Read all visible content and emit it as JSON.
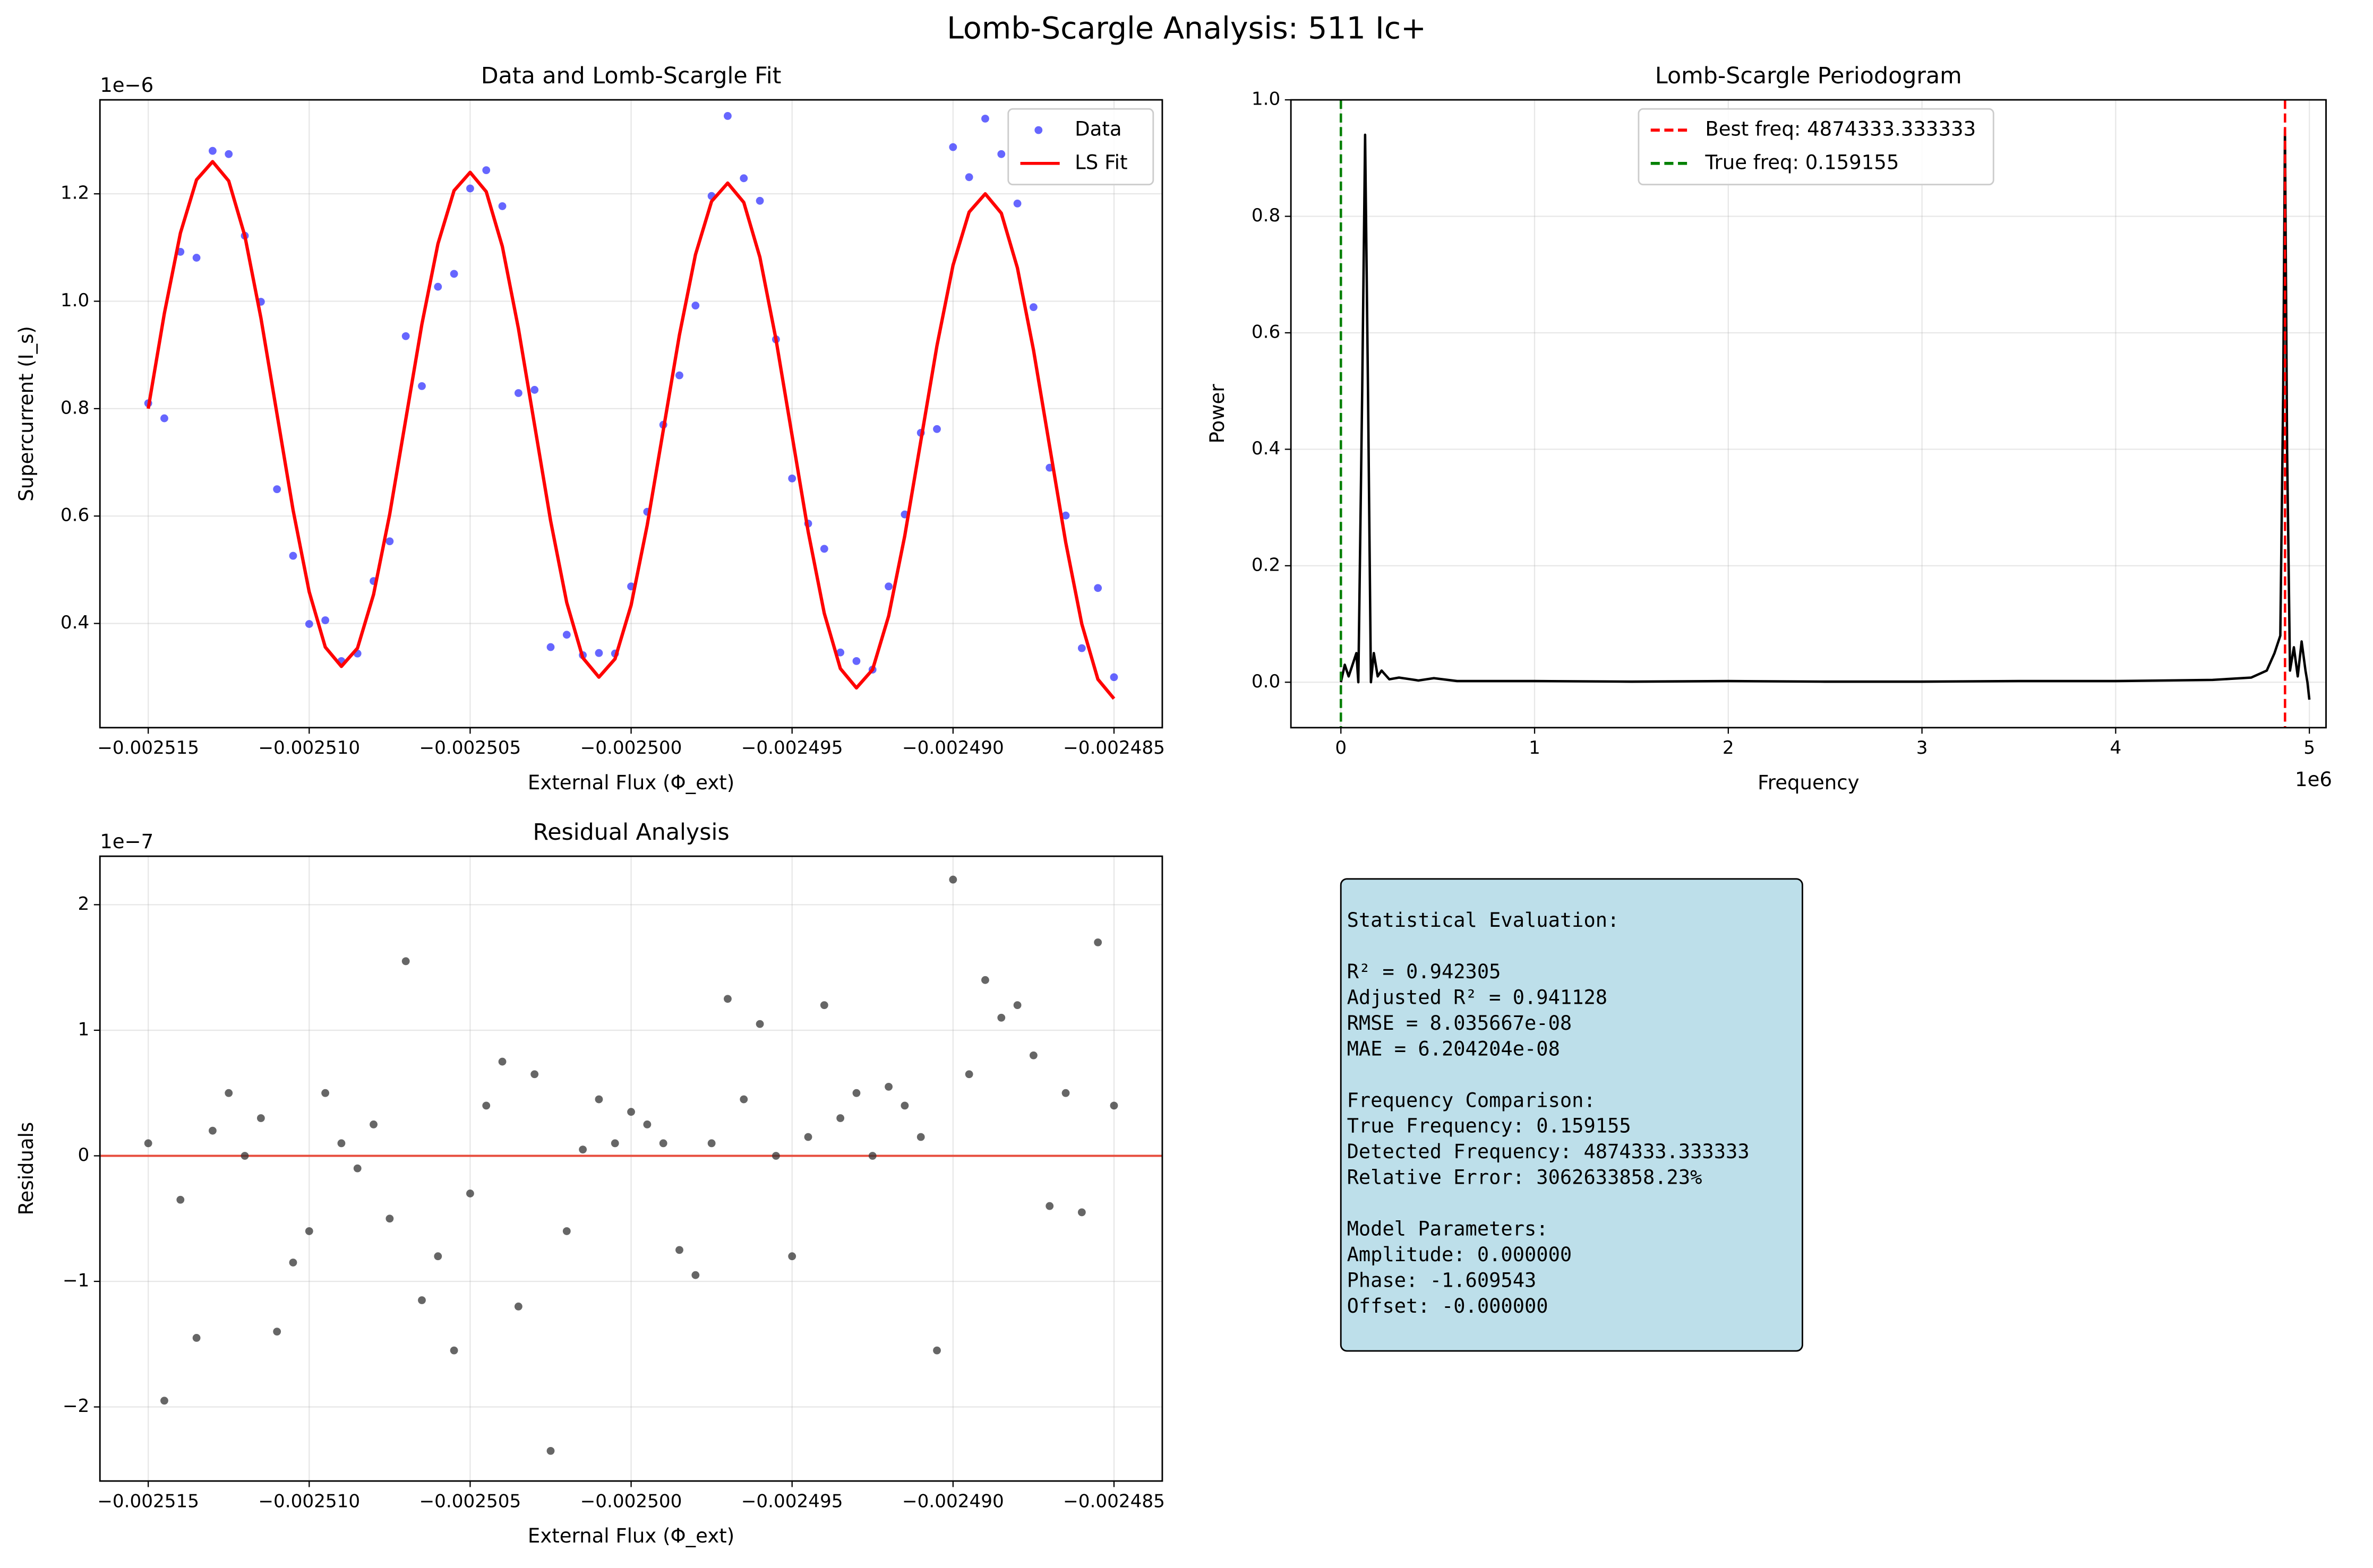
{
  "title": "Lomb-Scargle Analysis: 511 Ic+",
  "chart_data": [
    {
      "type": "scatter",
      "title": "Data and Lomb-Scargle Fit",
      "xlabel": "External Flux (Φ_ext)",
      "ylabel": "Supercurrent (I_s)",
      "y_offset": "1e−6",
      "grid": true,
      "legend": "upper right",
      "xlim": [
        -0.0025165,
        -0.0024835
      ],
      "ylim": [
        0.206,
        1.375
      ],
      "xticks": [
        {
          "value": -0.002515,
          "label": "−0.002515"
        },
        {
          "value": -0.00251,
          "label": "−0.002510"
        },
        {
          "value": -0.002505,
          "label": "−0.002505"
        },
        {
          "value": -0.0025,
          "label": "−0.002500"
        },
        {
          "value": -0.002495,
          "label": "−0.002495"
        },
        {
          "value": -0.00249,
          "label": "−0.002490"
        },
        {
          "value": -0.002485,
          "label": "−0.002485"
        }
      ],
      "yticks": [
        0.4,
        0.6,
        0.8,
        {
          "value": 1,
          "label": "1.0"
        },
        1.2
      ],
      "x": [
        -0.002515,
        -0.0025145,
        -0.002514,
        -0.0025135,
        -0.002513,
        -0.0025125,
        -0.002512,
        -0.0025115,
        -0.002511,
        -0.0025105,
        -0.00251,
        -0.0025095,
        -0.002509,
        -0.0025085,
        -0.002508,
        -0.0025075,
        -0.002507,
        -0.0025065,
        -0.002506,
        -0.0025055,
        -0.002505,
        -0.0025045,
        -0.002504,
        -0.0025035,
        -0.002503,
        -0.0025025,
        -0.002502,
        -0.0025015,
        -0.002501,
        -0.0025005,
        -0.0025,
        -0.0024995,
        -0.002499,
        -0.0024985,
        -0.002498,
        -0.0024975,
        -0.002497,
        -0.0024965,
        -0.002496,
        -0.0024955,
        -0.002495,
        -0.0024945,
        -0.002494,
        -0.0024935,
        -0.002493,
        -0.0024925,
        -0.002492,
        -0.0024915,
        -0.002491,
        -0.0024905,
        -0.00249,
        -0.0024895,
        -0.002489,
        -0.0024885,
        -0.002488,
        -0.0024875,
        -0.002487,
        -0.0024865,
        -0.002486,
        -0.0024855,
        -0.002485
      ],
      "series": [
        {
          "name": "Data",
          "color": "#3333ff",
          "mode": "markers",
          "values": [
            0.81,
            0.782,
            1.092,
            1.081,
            1.28,
            1.274,
            1.122,
            0.999,
            0.65,
            0.526,
            0.399,
            0.406,
            0.33,
            0.344,
            0.479,
            0.553,
            0.935,
            0.842,
            1.027,
            1.051,
            1.21,
            1.244,
            1.177,
            0.829,
            0.835,
            0.356,
            0.379,
            0.341,
            0.345,
            0.344,
            0.469,
            0.608,
            0.77,
            0.862,
            0.992,
            1.196,
            1.345,
            1.229,
            1.187,
            0.929,
            0.67,
            0.586,
            0.539,
            0.346,
            0.33,
            0.314,
            0.469,
            0.603,
            0.755,
            0.762,
            1.287,
            1.231,
            1.34,
            1.274,
            1.182,
            0.989,
            0.69,
            0.601,
            0.354,
            0.466,
            0.3
          ]
        },
        {
          "name": "LS Fit",
          "color": "#ff0000",
          "mode": "line",
          "values": [
            0.8,
            0.977,
            1.127,
            1.226,
            1.26,
            1.224,
            1.122,
            0.969,
            0.79,
            0.611,
            0.459,
            0.356,
            0.32,
            0.354,
            0.454,
            0.603,
            0.78,
            0.957,
            1.107,
            1.206,
            1.24,
            1.204,
            1.102,
            0.949,
            0.77,
            0.591,
            0.439,
            0.336,
            0.3,
            0.334,
            0.434,
            0.583,
            0.76,
            0.937,
            1.087,
            1.186,
            1.22,
            1.184,
            1.082,
            0.929,
            0.75,
            0.571,
            0.419,
            0.316,
            0.28,
            0.314,
            0.414,
            0.563,
            0.74,
            0.917,
            1.067,
            1.166,
            1.2,
            1.164,
            1.062,
            0.909,
            0.73,
            0.551,
            0.399,
            0.296,
            0.26
          ]
        }
      ]
    },
    {
      "type": "line",
      "title": "Lomb-Scargle Periodogram",
      "xlabel": "Frequency",
      "ylabel": "Power",
      "x_offset": "1e6",
      "grid": true,
      "legend": "upper center",
      "xlim": [
        -0.258,
        5.086
      ],
      "ylim": [
        -0.078,
        1.0
      ],
      "xticks": [
        0,
        1,
        2,
        3,
        4,
        5
      ],
      "yticks": [
        {
          "value": 0,
          "label": "0.0"
        },
        0.2,
        0.4,
        0.6,
        0.8,
        {
          "value": 1,
          "label": "1.0"
        }
      ],
      "x": [
        0,
        0.02,
        0.04,
        0.06,
        0.08,
        0.09,
        0.11,
        0.125,
        0.14,
        0.155,
        0.17,
        0.19,
        0.21,
        0.25,
        0.3,
        0.4,
        0.48,
        0.6,
        1.0,
        1.5,
        2.0,
        2.5,
        3.0,
        3.5,
        4.0,
        4.5,
        4.7,
        4.78,
        4.82,
        4.85,
        4.865,
        4.874,
        4.885,
        4.9,
        4.92,
        4.94,
        4.96,
        4.98,
        4.99,
        5.0
      ],
      "series": [
        {
          "color": "#000000",
          "mode": "line",
          "values": [
            0,
            0.03,
            0.01,
            0.03,
            0.05,
            0,
            0.5,
            0.94,
            0.5,
            0,
            0.05,
            0.01,
            0.02,
            0.005,
            0.008,
            0.003,
            0.007,
            0.002,
            0.002,
            0.001,
            0.002,
            0.001,
            0.001,
            0.002,
            0.002,
            0.004,
            0.008,
            0.02,
            0.05,
            0.08,
            0.5,
            0.95,
            0.4,
            0.02,
            0.06,
            0.01,
            0.07,
            0.02,
            0,
            -0.03
          ]
        }
      ],
      "vlines": [
        {
          "value": 4.874333333333,
          "label": "Best freq: 4874333.333333",
          "color": "#ff0000",
          "dash": true
        },
        {
          "value": 1.59155e-07,
          "label": "True freq: 0.159155",
          "color": "#008000",
          "dash": true
        }
      ]
    },
    {
      "type": "scatter",
      "title": "Residual Analysis",
      "xlabel": "External Flux (Φ_ext)",
      "ylabel": "Residuals",
      "y_offset": "1e−7",
      "grid": true,
      "xlim": [
        -0.0025165,
        -0.0024835
      ],
      "ylim": [
        -2.59,
        2.386
      ],
      "xticks": [
        {
          "value": -0.002515,
          "label": "−0.002515"
        },
        {
          "value": -0.00251,
          "label": "−0.002510"
        },
        {
          "value": -0.002505,
          "label": "−0.002505"
        },
        {
          "value": -0.0025,
          "label": "−0.002500"
        },
        {
          "value": -0.002495,
          "label": "−0.002495"
        },
        {
          "value": -0.00249,
          "label": "−0.002490"
        },
        {
          "value": -0.002485,
          "label": "−0.002485"
        }
      ],
      "yticks": [
        {
          "value": -2,
          "label": "−2"
        },
        {
          "value": -1,
          "label": "−1"
        },
        0,
        1,
        2
      ],
      "x": [
        -0.002515,
        -0.0025145,
        -0.002514,
        -0.0025135,
        -0.002513,
        -0.0025125,
        -0.002512,
        -0.0025115,
        -0.002511,
        -0.0025105,
        -0.00251,
        -0.0025095,
        -0.002509,
        -0.0025085,
        -0.002508,
        -0.0025075,
        -0.002507,
        -0.0025065,
        -0.002506,
        -0.0025055,
        -0.002505,
        -0.0025045,
        -0.002504,
        -0.0025035,
        -0.002503,
        -0.0025025,
        -0.002502,
        -0.0025015,
        -0.002501,
        -0.0025005,
        -0.0025,
        -0.0024995,
        -0.002499,
        -0.0024985,
        -0.002498,
        -0.0024975,
        -0.002497,
        -0.0024965,
        -0.002496,
        -0.0024955,
        -0.002495,
        -0.0024945,
        -0.002494,
        -0.0024935,
        -0.002493,
        -0.0024925,
        -0.002492,
        -0.0024915,
        -0.002491,
        -0.0024905,
        -0.00249,
        -0.0024895,
        -0.002489,
        -0.0024885,
        -0.002488,
        -0.0024875,
        -0.002487,
        -0.0024865,
        -0.002486,
        -0.0024855,
        -0.002485
      ],
      "series": [
        {
          "color": "#333333",
          "mode": "markers",
          "values": [
            0.1,
            -1.95,
            -0.35,
            -1.45,
            0.2,
            0.5,
            0,
            0.3,
            -1.4,
            -0.85,
            -0.6,
            0.5,
            0.1,
            -0.1,
            0.25,
            -0.5,
            1.55,
            -1.15,
            -0.8,
            -1.55,
            -0.3,
            0.4,
            0.75,
            -1.2,
            0.65,
            -2.35,
            -0.6,
            0.05,
            0.45,
            0.1,
            0.35,
            0.25,
            0.1,
            -0.75,
            -0.95,
            0.1,
            1.25,
            0.45,
            1.05,
            0,
            -0.8,
            0.15,
            1.2,
            0.3,
            0.5,
            0,
            0.55,
            0.4,
            0.15,
            -1.55,
            2.2,
            0.65,
            1.4,
            1.1,
            1.2,
            0.8,
            -0.4,
            0.5,
            -0.45,
            1.7,
            0.4
          ]
        }
      ],
      "hlines": [
        {
          "value": 0,
          "color": "#e74c3c"
        }
      ]
    }
  ],
  "stats_box": [
    [
      "Statistical Evaluation:"
    ],
    [
      "R² = 0.942305",
      "Adjusted R² = 0.941128",
      "RMSE = 8.035667e-08",
      "MAE = 6.204204e-08"
    ],
    [
      "Frequency Comparison:",
      "True Frequency: 0.159155",
      "Detected Frequency: 4874333.333333",
      "Relative Error: 3062633858.23%"
    ],
    [
      "Model Parameters:",
      "Amplitude: 0.000000",
      "Phase: -1.609543",
      "Offset: -0.000000"
    ]
  ]
}
